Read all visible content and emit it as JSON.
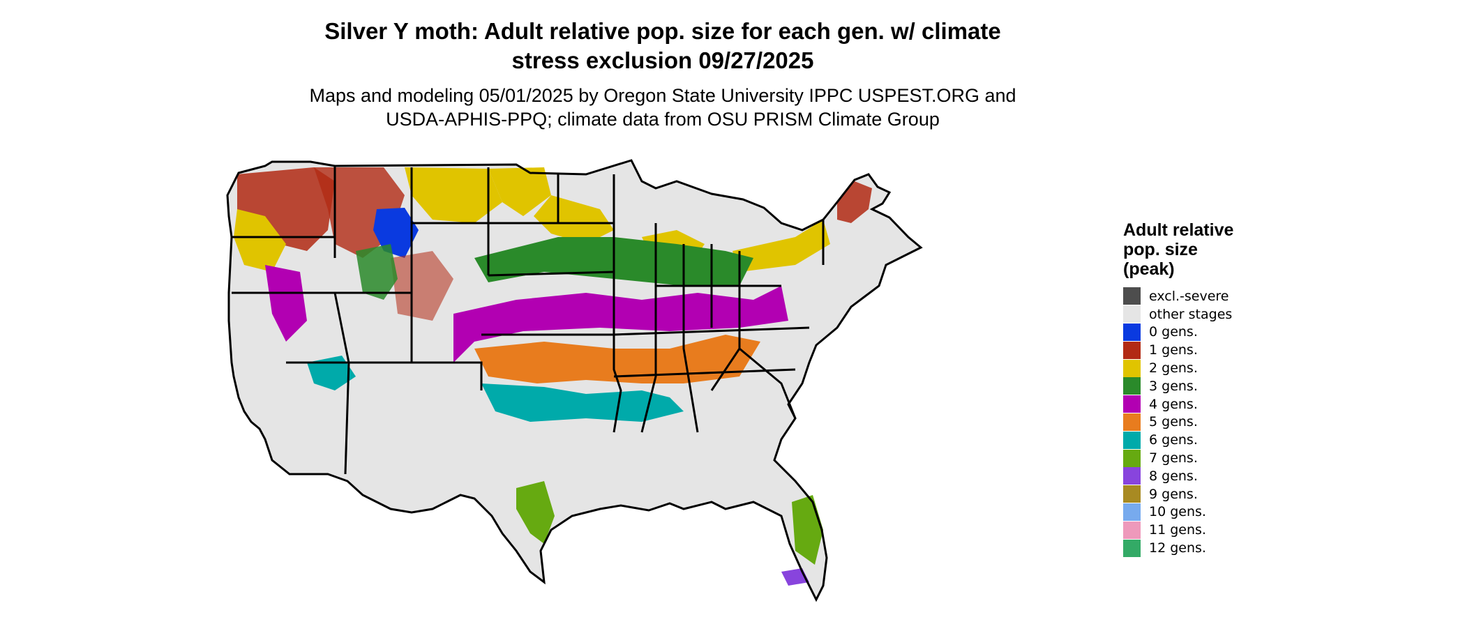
{
  "header": {
    "title_line1": "Silver Y moth: Adult relative pop. size for each gen. w/ climate",
    "title_line2": "stress exclusion 09/27/2025",
    "subtitle_line1": "Maps and modeling 05/01/2025 by Oregon State University IPPC USPEST.ORG and",
    "subtitle_line2": "USDA-APHIS-PPQ; climate data from OSU PRISM Climate Group"
  },
  "legend": {
    "title_line1": "Adult relative",
    "title_line2": "pop. size",
    "title_line3": "(peak)",
    "items": [
      {
        "label": "excl.-severe",
        "color": "#4d4d4d"
      },
      {
        "label": "other stages",
        "color": "#e5e5e5"
      },
      {
        "label": "0 gens.",
        "color": "#0a3ae0"
      },
      {
        "label": "1 gens.",
        "color": "#b22a14"
      },
      {
        "label": "2 gens.",
        "color": "#e0c400"
      },
      {
        "label": "3 gens.",
        "color": "#2a8a2a"
      },
      {
        "label": "4 gens.",
        "color": "#b200b2"
      },
      {
        "label": "5 gens.",
        "color": "#e87c1e"
      },
      {
        "label": "6 gens.",
        "color": "#00aaaa"
      },
      {
        "label": "7 gens.",
        "color": "#66aa11"
      },
      {
        "label": "8 gens.",
        "color": "#8844dd"
      },
      {
        "label": "9 gens.",
        "color": "#a88a22"
      },
      {
        "label": "10 gens.",
        "color": "#77aaee"
      },
      {
        "label": "11 gens.",
        "color": "#ee99bb"
      },
      {
        "label": "12 gens.",
        "color": "#33aa66"
      }
    ]
  },
  "map": {
    "region": "Contiguous United States",
    "background_color": "#e5e5e5",
    "border_color": "#000000"
  }
}
